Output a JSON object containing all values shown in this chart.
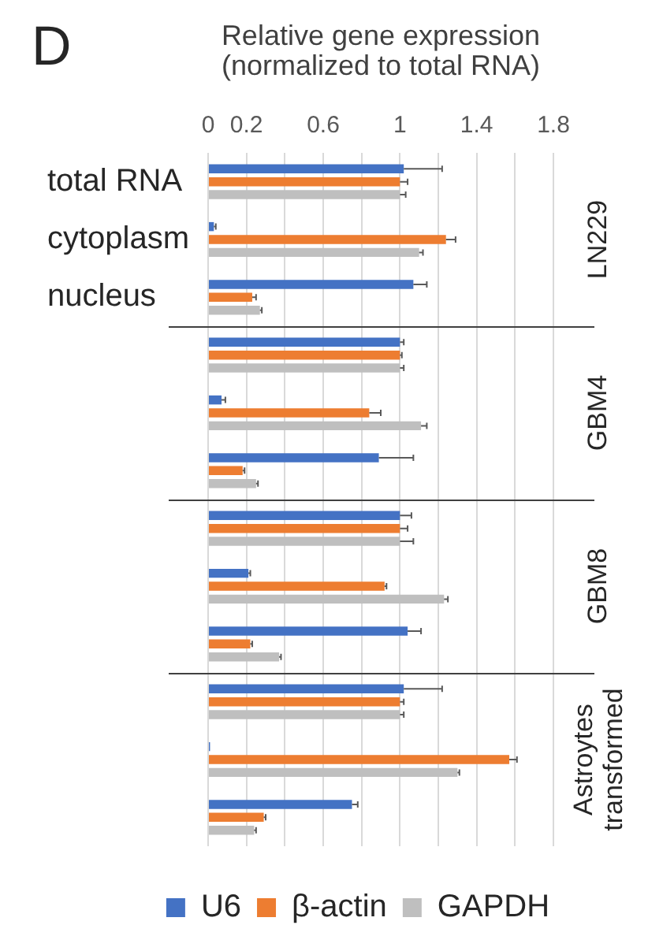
{
  "chart_data": {
    "type": "bar",
    "orientation": "horizontal",
    "title": "D",
    "xlabel": "Relative gene expression (normalized to total RNA)",
    "categories": [
      "total RNA",
      "cytoplasm",
      "nucleus",
      null,
      null,
      null,
      null,
      null,
      null,
      null,
      null,
      null
    ],
    "series": [
      {
        "name": "U6",
        "color": "#4472c4",
        "values": [
          1.02,
          0.03,
          1.07,
          1.0,
          0.07,
          0.89,
          1.0,
          0.21,
          1.04,
          1.02,
          0.01,
          0.75
        ],
        "errors": [
          [
            1.02,
            1.22
          ],
          [
            0.03,
            0.04
          ],
          [
            1.07,
            1.14
          ],
          [
            1.0,
            1.02
          ],
          [
            0.07,
            0.09
          ],
          [
            0.89,
            1.07
          ],
          [
            1.0,
            1.06
          ],
          [
            0.21,
            0.22
          ],
          [
            1.04,
            1.11
          ],
          [
            1.02,
            1.22
          ],
          null,
          [
            0.75,
            0.78
          ]
        ]
      },
      {
        "name": "β-actin",
        "color": "#ed7d31",
        "values": [
          1.0,
          1.24,
          0.23,
          1.0,
          0.84,
          0.18,
          1.0,
          0.92,
          0.22,
          1.0,
          1.57,
          0.29
        ],
        "errors": [
          [
            1.0,
            1.04
          ],
          [
            1.24,
            1.29
          ],
          [
            0.23,
            0.25
          ],
          [
            1.0,
            1.01
          ],
          [
            0.84,
            0.9
          ],
          [
            0.18,
            0.19
          ],
          [
            1.0,
            1.04
          ],
          [
            0.92,
            0.93
          ],
          [
            0.22,
            0.23
          ],
          [
            1.0,
            1.02
          ],
          [
            1.57,
            1.61
          ],
          [
            0.29,
            0.3
          ]
        ]
      },
      {
        "name": "GAPDH",
        "color": "#bfbfbf",
        "values": [
          1.0,
          1.1,
          0.27,
          1.0,
          1.11,
          0.25,
          1.0,
          1.23,
          0.37,
          1.0,
          1.3,
          0.24
        ],
        "errors": [
          [
            1.0,
            1.03
          ],
          [
            1.1,
            1.12
          ],
          [
            0.27,
            0.28
          ],
          [
            1.0,
            1.02
          ],
          [
            1.11,
            1.14
          ],
          [
            0.25,
            0.26
          ],
          [
            1.0,
            1.07
          ],
          [
            1.23,
            1.25
          ],
          [
            0.37,
            0.38
          ],
          [
            1.0,
            1.02
          ],
          [
            1.3,
            1.31
          ],
          [
            0.24,
            0.25
          ]
        ]
      }
    ],
    "xlim": [
      0,
      1.8
    ],
    "xticks": [
      0,
      0.2,
      {
        "value": 0.4,
        "label": null
      },
      0.6,
      {
        "value": 0.8,
        "label": null
      },
      1,
      {
        "value": 1.2,
        "label": null
      },
      1.4,
      {
        "value": 1.6,
        "label": null
      },
      1.8
    ],
    "grid": "x",
    "legend": "bottom",
    "annotations": [
      "LN229",
      "GBM4",
      "GBM8",
      "Astroytes transformed"
    ]
  }
}
